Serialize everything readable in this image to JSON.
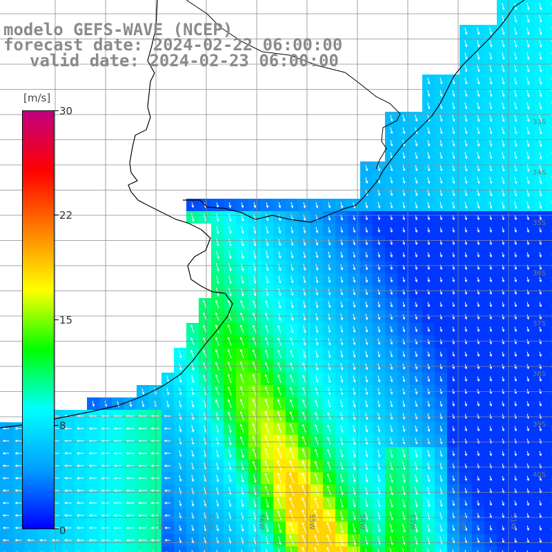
{
  "title": {
    "line1": "modelo GEFS-WAVE (NCEP)",
    "line2": "forecast date: 2024-02-22 06:00:00",
    "line3": "valid date: 2024-02-23 06:00:00"
  },
  "colorbar": {
    "unit": "[m/s]",
    "ticks": [
      "30",
      "22",
      "15",
      "8",
      "0"
    ],
    "tick_values": [
      30,
      22,
      15,
      8,
      0
    ],
    "min": 0,
    "max": 30,
    "colors": [
      "#0000ff",
      "#00a0ff",
      "#00ffff",
      "#00ff00",
      "#ffff00",
      "#ff8000",
      "#ff0000",
      "#c00080"
    ]
  },
  "map": {
    "lat_labels": [
      "33S",
      "34S",
      "35S",
      "36S",
      "37S",
      "38S",
      "39S",
      "40S"
    ],
    "lon_labels": [
      "58W",
      "57W",
      "56W",
      "55W",
      "54W",
      "53W",
      "52W",
      "51W"
    ],
    "field": "wind speed",
    "region": "Rio de la Plata / Uruguay coast"
  }
}
